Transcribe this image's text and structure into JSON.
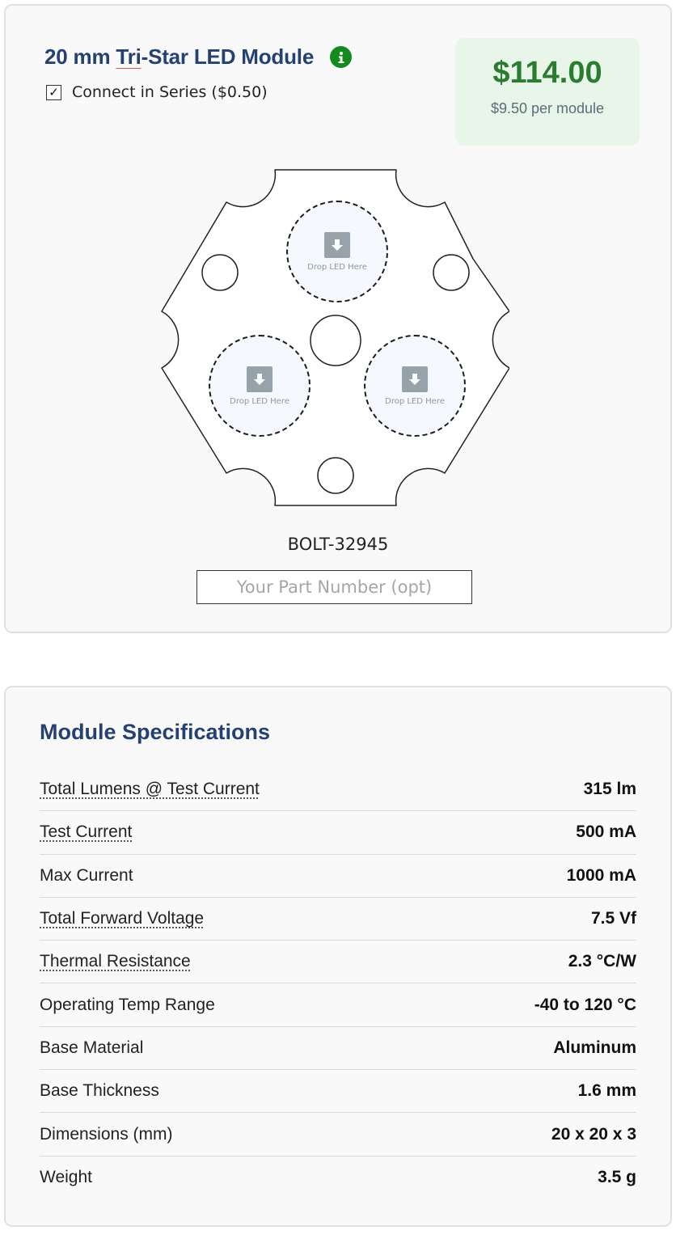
{
  "module": {
    "title_prefix": "20 mm ",
    "title_spell": "Tri",
    "title_suffix": "-Star LED Module",
    "info_icon": "info-icon",
    "series": {
      "checked": true,
      "check_glyph": "✓",
      "label": "Connect in Series ($0.50)"
    }
  },
  "price": {
    "total": "$114.00",
    "per_module": "$9.50 per module"
  },
  "drop_zones": [
    {
      "label": "Drop LED Here",
      "icon": "download-arrow-icon"
    },
    {
      "label": "Drop LED Here",
      "icon": "download-arrow-icon"
    },
    {
      "label": "Drop LED Here",
      "icon": "download-arrow-icon"
    }
  ],
  "part": {
    "id": "BOLT-32945",
    "input_placeholder": "Your Part Number (opt)",
    "input_value": ""
  },
  "specs": {
    "title": "Module Specifications",
    "rows": [
      {
        "label": "Total Lumens @ Test Current",
        "value": "315 lm",
        "tooltip": true
      },
      {
        "label": "Test Current",
        "value": "500 mA",
        "tooltip": true
      },
      {
        "label": "Max Current",
        "value": "1000 mA",
        "tooltip": false
      },
      {
        "label": "Total Forward Voltage",
        "value": "7.5 Vf",
        "tooltip": true
      },
      {
        "label": "Thermal Resistance",
        "value": "2.3 °C/W",
        "tooltip": true
      },
      {
        "label": "Operating Temp Range",
        "value": "-40 to 120 °C",
        "tooltip": false
      },
      {
        "label": "Base Material",
        "value": "Aluminum",
        "tooltip": false
      },
      {
        "label": "Base Thickness",
        "value": "1.6 mm",
        "tooltip": false
      },
      {
        "label": "Dimensions (mm)",
        "value": "20 x 20 x 3",
        "tooltip": false
      },
      {
        "label": "Weight",
        "value": "3.5 g",
        "tooltip": false
      }
    ]
  },
  "colors": {
    "title": "#244174",
    "price": "#2a7d2e",
    "price_bg": "#e7f6e8",
    "info": "#128a1e"
  }
}
